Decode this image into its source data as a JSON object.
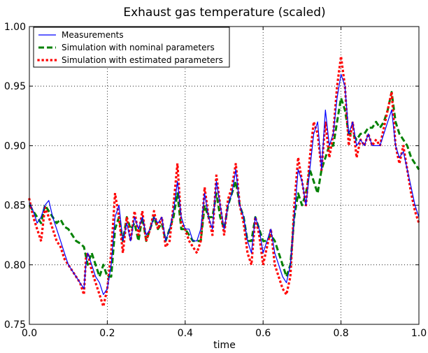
{
  "chart_data": {
    "type": "line",
    "title": "Exhaust gas temperature (scaled)",
    "xlabel": "time",
    "ylabel": "",
    "xlim": [
      0.0,
      1.0
    ],
    "ylim": [
      0.75,
      1.0
    ],
    "x_ticks": [
      "0.0",
      "0.2",
      "0.4",
      "0.6",
      "0.8",
      "1.0"
    ],
    "y_ticks": [
      "0.75",
      "0.80",
      "0.85",
      "0.90",
      "0.95",
      "1.00"
    ],
    "grid": true,
    "legend_position": "top-left",
    "series": [
      {
        "name": "Measurements",
        "color": "#0000ff",
        "style": "solid",
        "points": [
          [
            0.0,
            0.852
          ],
          [
            0.01,
            0.845
          ],
          [
            0.02,
            0.835
          ],
          [
            0.03,
            0.84
          ],
          [
            0.04,
            0.85
          ],
          [
            0.05,
            0.854
          ],
          [
            0.06,
            0.84
          ],
          [
            0.07,
            0.83
          ],
          [
            0.08,
            0.82
          ],
          [
            0.09,
            0.81
          ],
          [
            0.1,
            0.8
          ],
          [
            0.11,
            0.795
          ],
          [
            0.12,
            0.79
          ],
          [
            0.13,
            0.785
          ],
          [
            0.14,
            0.78
          ],
          [
            0.145,
            0.8
          ],
          [
            0.15,
            0.81
          ],
          [
            0.16,
            0.8
          ],
          [
            0.17,
            0.79
          ],
          [
            0.18,
            0.785
          ],
          [
            0.19,
            0.775
          ],
          [
            0.2,
            0.78
          ],
          [
            0.21,
            0.8
          ],
          [
            0.22,
            0.84
          ],
          [
            0.23,
            0.85
          ],
          [
            0.24,
            0.82
          ],
          [
            0.25,
            0.835
          ],
          [
            0.26,
            0.82
          ],
          [
            0.27,
            0.84
          ],
          [
            0.28,
            0.83
          ],
          [
            0.29,
            0.84
          ],
          [
            0.3,
            0.825
          ],
          [
            0.31,
            0.83
          ],
          [
            0.32,
            0.84
          ],
          [
            0.33,
            0.835
          ],
          [
            0.34,
            0.84
          ],
          [
            0.35,
            0.82
          ],
          [
            0.36,
            0.83
          ],
          [
            0.37,
            0.845
          ],
          [
            0.38,
            0.87
          ],
          [
            0.39,
            0.84
          ],
          [
            0.4,
            0.83
          ],
          [
            0.41,
            0.83
          ],
          [
            0.42,
            0.82
          ],
          [
            0.43,
            0.82
          ],
          [
            0.44,
            0.83
          ],
          [
            0.45,
            0.86
          ],
          [
            0.46,
            0.84
          ],
          [
            0.47,
            0.83
          ],
          [
            0.48,
            0.87
          ],
          [
            0.49,
            0.85
          ],
          [
            0.5,
            0.83
          ],
          [
            0.51,
            0.85
          ],
          [
            0.52,
            0.86
          ],
          [
            0.53,
            0.88
          ],
          [
            0.54,
            0.85
          ],
          [
            0.55,
            0.84
          ],
          [
            0.56,
            0.82
          ],
          [
            0.57,
            0.81
          ],
          [
            0.58,
            0.84
          ],
          [
            0.59,
            0.83
          ],
          [
            0.6,
            0.81
          ],
          [
            0.61,
            0.82
          ],
          [
            0.62,
            0.83
          ],
          [
            0.63,
            0.81
          ],
          [
            0.64,
            0.8
          ],
          [
            0.65,
            0.79
          ],
          [
            0.66,
            0.785
          ],
          [
            0.67,
            0.8
          ],
          [
            0.68,
            0.84
          ],
          [
            0.69,
            0.88
          ],
          [
            0.7,
            0.87
          ],
          [
            0.71,
            0.85
          ],
          [
            0.72,
            0.88
          ],
          [
            0.73,
            0.91
          ],
          [
            0.74,
            0.92
          ],
          [
            0.75,
            0.88
          ],
          [
            0.76,
            0.93
          ],
          [
            0.77,
            0.9
          ],
          [
            0.78,
            0.91
          ],
          [
            0.79,
            0.94
          ],
          [
            0.8,
            0.96
          ],
          [
            0.81,
            0.95
          ],
          [
            0.82,
            0.91
          ],
          [
            0.83,
            0.92
          ],
          [
            0.84,
            0.9
          ],
          [
            0.85,
            0.905
          ],
          [
            0.86,
            0.9
          ],
          [
            0.87,
            0.91
          ],
          [
            0.88,
            0.9
          ],
          [
            0.89,
            0.9
          ],
          [
            0.9,
            0.9
          ],
          [
            0.91,
            0.91
          ],
          [
            0.92,
            0.92
          ],
          [
            0.93,
            0.93
          ],
          [
            0.94,
            0.9
          ],
          [
            0.95,
            0.89
          ],
          [
            0.96,
            0.895
          ],
          [
            0.97,
            0.88
          ],
          [
            0.98,
            0.865
          ],
          [
            0.99,
            0.85
          ],
          [
            1.0,
            0.84
          ]
        ]
      },
      {
        "name": "Simulation with nominal parameters",
        "color": "#008000",
        "style": "dashed",
        "points": [
          [
            0.0,
            0.85
          ],
          [
            0.01,
            0.845
          ],
          [
            0.02,
            0.84
          ],
          [
            0.03,
            0.835
          ],
          [
            0.04,
            0.85
          ],
          [
            0.05,
            0.845
          ],
          [
            0.06,
            0.84
          ],
          [
            0.07,
            0.835
          ],
          [
            0.08,
            0.838
          ],
          [
            0.09,
            0.832
          ],
          [
            0.1,
            0.83
          ],
          [
            0.11,
            0.825
          ],
          [
            0.12,
            0.82
          ],
          [
            0.13,
            0.818
          ],
          [
            0.14,
            0.815
          ],
          [
            0.15,
            0.8
          ],
          [
            0.16,
            0.81
          ],
          [
            0.17,
            0.8
          ],
          [
            0.18,
            0.79
          ],
          [
            0.19,
            0.8
          ],
          [
            0.2,
            0.79
          ],
          [
            0.21,
            0.79
          ],
          [
            0.22,
            0.83
          ],
          [
            0.23,
            0.84
          ],
          [
            0.24,
            0.82
          ],
          [
            0.25,
            0.84
          ],
          [
            0.26,
            0.83
          ],
          [
            0.27,
            0.835
          ],
          [
            0.28,
            0.82
          ],
          [
            0.29,
            0.84
          ],
          [
            0.3,
            0.82
          ],
          [
            0.31,
            0.83
          ],
          [
            0.32,
            0.84
          ],
          [
            0.33,
            0.83
          ],
          [
            0.34,
            0.835
          ],
          [
            0.35,
            0.82
          ],
          [
            0.36,
            0.83
          ],
          [
            0.37,
            0.84
          ],
          [
            0.38,
            0.86
          ],
          [
            0.39,
            0.83
          ],
          [
            0.4,
            0.83
          ],
          [
            0.41,
            0.825
          ],
          [
            0.42,
            0.82
          ],
          [
            0.43,
            0.82
          ],
          [
            0.44,
            0.82
          ],
          [
            0.45,
            0.85
          ],
          [
            0.46,
            0.84
          ],
          [
            0.47,
            0.84
          ],
          [
            0.48,
            0.86
          ],
          [
            0.49,
            0.84
          ],
          [
            0.5,
            0.83
          ],
          [
            0.51,
            0.85
          ],
          [
            0.52,
            0.86
          ],
          [
            0.53,
            0.87
          ],
          [
            0.54,
            0.85
          ],
          [
            0.55,
            0.84
          ],
          [
            0.56,
            0.82
          ],
          [
            0.57,
            0.82
          ],
          [
            0.58,
            0.84
          ],
          [
            0.59,
            0.83
          ],
          [
            0.6,
            0.82
          ],
          [
            0.61,
            0.82
          ],
          [
            0.62,
            0.825
          ],
          [
            0.63,
            0.82
          ],
          [
            0.64,
            0.81
          ],
          [
            0.65,
            0.8
          ],
          [
            0.66,
            0.79
          ],
          [
            0.67,
            0.8
          ],
          [
            0.68,
            0.84
          ],
          [
            0.69,
            0.86
          ],
          [
            0.7,
            0.85
          ],
          [
            0.71,
            0.86
          ],
          [
            0.72,
            0.88
          ],
          [
            0.73,
            0.87
          ],
          [
            0.74,
            0.86
          ],
          [
            0.75,
            0.88
          ],
          [
            0.76,
            0.89
          ],
          [
            0.77,
            0.9
          ],
          [
            0.78,
            0.9
          ],
          [
            0.79,
            0.92
          ],
          [
            0.8,
            0.94
          ],
          [
            0.81,
            0.93
          ],
          [
            0.82,
            0.91
          ],
          [
            0.83,
            0.91
          ],
          [
            0.84,
            0.905
          ],
          [
            0.85,
            0.91
          ],
          [
            0.86,
            0.91
          ],
          [
            0.87,
            0.915
          ],
          [
            0.88,
            0.915
          ],
          [
            0.89,
            0.92
          ],
          [
            0.9,
            0.915
          ],
          [
            0.91,
            0.92
          ],
          [
            0.92,
            0.93
          ],
          [
            0.93,
            0.945
          ],
          [
            0.94,
            0.92
          ],
          [
            0.95,
            0.91
          ],
          [
            0.96,
            0.905
          ],
          [
            0.97,
            0.9
          ],
          [
            0.98,
            0.89
          ],
          [
            0.99,
            0.885
          ],
          [
            1.0,
            0.88
          ]
        ]
      },
      {
        "name": "Simulation with estimated parameters",
        "color": "#ff0000",
        "style": "dotted",
        "points": [
          [
            0.0,
            0.855
          ],
          [
            0.01,
            0.84
          ],
          [
            0.02,
            0.83
          ],
          [
            0.03,
            0.82
          ],
          [
            0.04,
            0.848
          ],
          [
            0.05,
            0.84
          ],
          [
            0.06,
            0.83
          ],
          [
            0.07,
            0.82
          ],
          [
            0.08,
            0.815
          ],
          [
            0.09,
            0.805
          ],
          [
            0.1,
            0.8
          ],
          [
            0.11,
            0.795
          ],
          [
            0.12,
            0.79
          ],
          [
            0.13,
            0.785
          ],
          [
            0.14,
            0.775
          ],
          [
            0.145,
            0.805
          ],
          [
            0.15,
            0.81
          ],
          [
            0.16,
            0.795
          ],
          [
            0.17,
            0.785
          ],
          [
            0.18,
            0.775
          ],
          [
            0.19,
            0.765
          ],
          [
            0.2,
            0.78
          ],
          [
            0.21,
            0.81
          ],
          [
            0.22,
            0.86
          ],
          [
            0.23,
            0.84
          ],
          [
            0.24,
            0.81
          ],
          [
            0.25,
            0.84
          ],
          [
            0.26,
            0.82
          ],
          [
            0.27,
            0.845
          ],
          [
            0.28,
            0.825
          ],
          [
            0.29,
            0.845
          ],
          [
            0.3,
            0.82
          ],
          [
            0.31,
            0.83
          ],
          [
            0.32,
            0.845
          ],
          [
            0.33,
            0.83
          ],
          [
            0.34,
            0.84
          ],
          [
            0.35,
            0.815
          ],
          [
            0.36,
            0.82
          ],
          [
            0.37,
            0.85
          ],
          [
            0.38,
            0.885
          ],
          [
            0.39,
            0.835
          ],
          [
            0.4,
            0.83
          ],
          [
            0.41,
            0.82
          ],
          [
            0.42,
            0.815
          ],
          [
            0.43,
            0.81
          ],
          [
            0.44,
            0.82
          ],
          [
            0.45,
            0.865
          ],
          [
            0.46,
            0.84
          ],
          [
            0.47,
            0.825
          ],
          [
            0.48,
            0.875
          ],
          [
            0.49,
            0.85
          ],
          [
            0.5,
            0.825
          ],
          [
            0.51,
            0.855
          ],
          [
            0.52,
            0.865
          ],
          [
            0.53,
            0.885
          ],
          [
            0.54,
            0.85
          ],
          [
            0.55,
            0.835
          ],
          [
            0.56,
            0.81
          ],
          [
            0.57,
            0.8
          ],
          [
            0.58,
            0.84
          ],
          [
            0.59,
            0.825
          ],
          [
            0.6,
            0.8
          ],
          [
            0.61,
            0.815
          ],
          [
            0.62,
            0.83
          ],
          [
            0.63,
            0.8
          ],
          [
            0.64,
            0.79
          ],
          [
            0.65,
            0.78
          ],
          [
            0.66,
            0.775
          ],
          [
            0.67,
            0.79
          ],
          [
            0.68,
            0.85
          ],
          [
            0.69,
            0.89
          ],
          [
            0.7,
            0.87
          ],
          [
            0.71,
            0.85
          ],
          [
            0.72,
            0.89
          ],
          [
            0.73,
            0.92
          ],
          [
            0.74,
            0.91
          ],
          [
            0.75,
            0.88
          ],
          [
            0.76,
            0.92
          ],
          [
            0.77,
            0.89
          ],
          [
            0.78,
            0.91
          ],
          [
            0.79,
            0.95
          ],
          [
            0.8,
            0.975
          ],
          [
            0.81,
            0.95
          ],
          [
            0.82,
            0.9
          ],
          [
            0.83,
            0.92
          ],
          [
            0.84,
            0.89
          ],
          [
            0.85,
            0.905
          ],
          [
            0.86,
            0.9
          ],
          [
            0.87,
            0.91
          ],
          [
            0.88,
            0.9
          ],
          [
            0.89,
            0.905
          ],
          [
            0.9,
            0.9
          ],
          [
            0.91,
            0.915
          ],
          [
            0.92,
            0.93
          ],
          [
            0.93,
            0.945
          ],
          [
            0.94,
            0.9
          ],
          [
            0.95,
            0.885
          ],
          [
            0.96,
            0.9
          ],
          [
            0.97,
            0.88
          ],
          [
            0.98,
            0.86
          ],
          [
            0.99,
            0.845
          ],
          [
            1.0,
            0.835
          ]
        ]
      }
    ]
  }
}
